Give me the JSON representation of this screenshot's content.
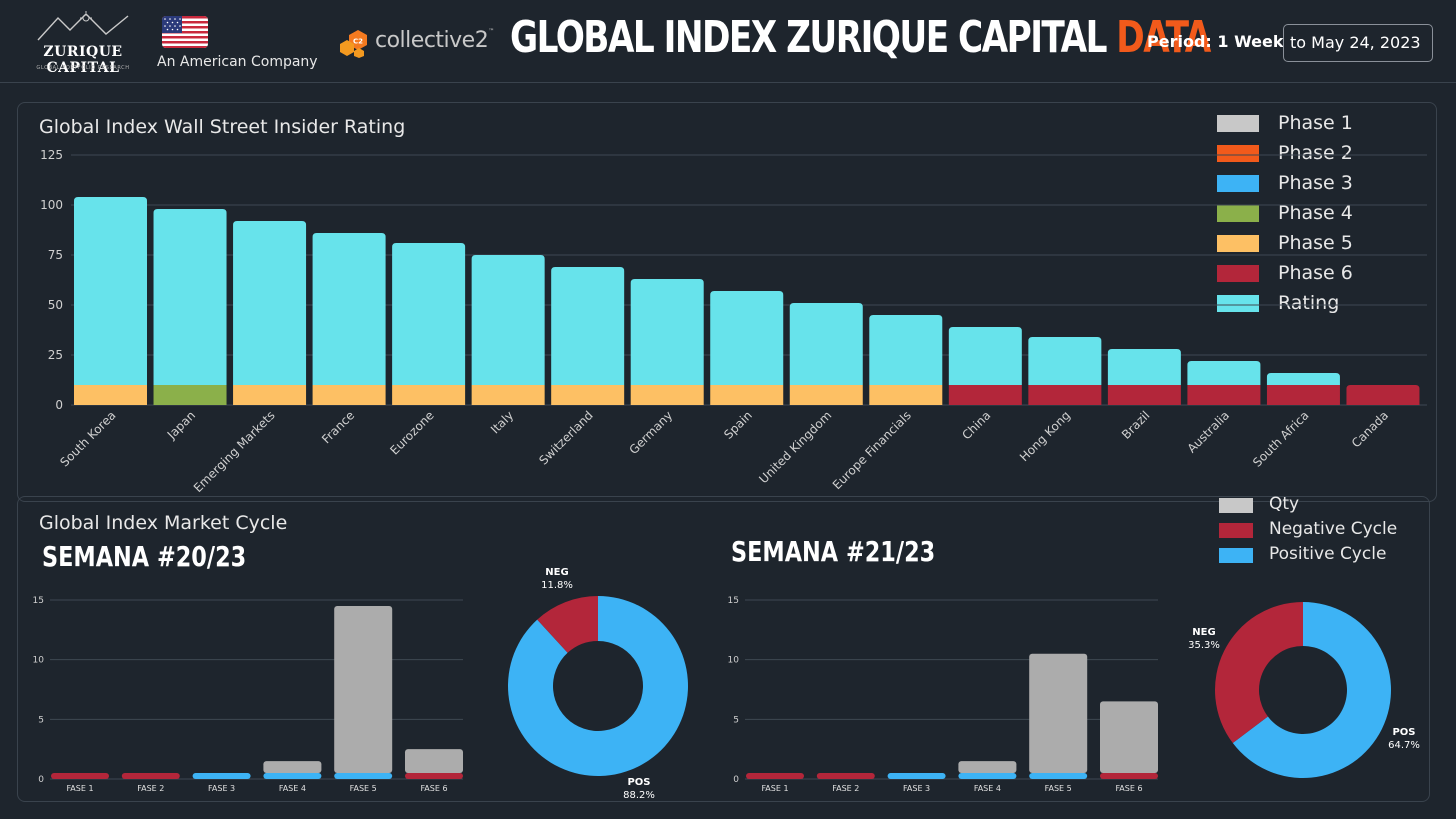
{
  "header": {
    "logo_name": "ZURIQUE CAPITAL",
    "logo_sub": "GLOBAL PORTFOLIO RESEARCH",
    "company_tagline": "An American Company",
    "partner_name": "collective2",
    "partner_badge": "C2",
    "partner_tm": "™",
    "title_main": "GLOBAL INDEX ZURIQUE CAPITAL ",
    "title_accent": "DATA",
    "period_label": "Period: 1 Week",
    "date_value": "to May 24, 2023"
  },
  "colors": {
    "background": "#1e252d",
    "phase1": "#c8c8c8",
    "phase2": "#f25a1b",
    "phase3": "#3db3f5",
    "phase4": "#8bb04a",
    "phase5": "#fdc064",
    "phase6": "#b3263a",
    "rating": "#67e3eb",
    "qty": "#acacac",
    "accent": "#f25a1b"
  },
  "chart_data": [
    {
      "type": "bar",
      "title": "Global Index Wall Street Insider Rating",
      "categories": [
        "South Korea",
        "Japan",
        "Emerging Markets",
        "France",
        "Eurozone",
        "Italy",
        "Switzerland",
        "Germany",
        "Spain",
        "United Kingdom",
        "Europe Financials",
        "China",
        "Hong Kong",
        "Brazil",
        "Australia",
        "South Africa",
        "Canada"
      ],
      "series": [
        {
          "name": "Phase 1",
          "values": [
            0,
            0,
            0,
            0,
            0,
            0,
            0,
            0,
            0,
            0,
            0,
            0,
            0,
            0,
            0,
            0,
            0
          ]
        },
        {
          "name": "Phase 2",
          "values": [
            0,
            0,
            0,
            0,
            0,
            0,
            0,
            0,
            0,
            0,
            0,
            0,
            0,
            0,
            0,
            0,
            0
          ]
        },
        {
          "name": "Phase 3",
          "values": [
            0,
            0,
            0,
            0,
            0,
            0,
            0,
            0,
            0,
            0,
            0,
            0,
            0,
            0,
            0,
            0,
            0
          ]
        },
        {
          "name": "Phase 4",
          "values": [
            0,
            10,
            0,
            0,
            0,
            0,
            0,
            0,
            0,
            0,
            0,
            0,
            0,
            0,
            0,
            0,
            0
          ]
        },
        {
          "name": "Phase 5",
          "values": [
            10,
            0,
            10,
            10,
            10,
            10,
            10,
            10,
            10,
            10,
            10,
            0,
            0,
            0,
            0,
            0,
            0
          ]
        },
        {
          "name": "Phase 6",
          "values": [
            0,
            0,
            0,
            0,
            0,
            0,
            0,
            0,
            0,
            0,
            0,
            10,
            10,
            10,
            10,
            10,
            10
          ]
        },
        {
          "name": "Rating",
          "values": [
            94,
            88,
            82,
            76,
            71,
            65,
            59,
            53,
            47,
            41,
            35,
            29,
            24,
            18,
            12,
            6,
            0
          ]
        }
      ],
      "stacked": true,
      "ylim": [
        0,
        125
      ],
      "yticks": [
        0,
        25,
        50,
        75,
        100,
        125
      ],
      "legend_position": "top-right"
    },
    {
      "type": "bar",
      "title": "SEMANA #20/23",
      "categories": [
        "FASE 1",
        "FASE 2",
        "FASE 3",
        "FASE 4",
        "FASE 5",
        "FASE 6"
      ],
      "series": [
        {
          "name": "Negative Cycle",
          "values": [
            0.5,
            0.5,
            0,
            0,
            0,
            0.5
          ]
        },
        {
          "name": "Positive Cycle",
          "values": [
            0,
            0,
            0.5,
            0.5,
            0.5,
            0
          ]
        },
        {
          "name": "Qty",
          "values": [
            0,
            0,
            0,
            1,
            14,
            2
          ]
        }
      ],
      "stacked": true,
      "ylim": [
        0,
        15
      ],
      "yticks": [
        0,
        5,
        10,
        15
      ]
    },
    {
      "type": "pie",
      "title": "SEMANA #20/23",
      "labels": [
        "POS",
        "NEG"
      ],
      "values": [
        88.2,
        11.8
      ],
      "display": [
        "88.2%",
        "11.8%"
      ]
    },
    {
      "type": "bar",
      "title": "SEMANA #21/23",
      "categories": [
        "FASE 1",
        "FASE 2",
        "FASE 3",
        "FASE 4",
        "FASE 5",
        "FASE 6"
      ],
      "series": [
        {
          "name": "Negative Cycle",
          "values": [
            0.5,
            0.5,
            0,
            0,
            0,
            0.5
          ]
        },
        {
          "name": "Positive Cycle",
          "values": [
            0,
            0,
            0.5,
            0.5,
            0.5,
            0
          ]
        },
        {
          "name": "Qty",
          "values": [
            0,
            0,
            0,
            1,
            10,
            6
          ]
        }
      ],
      "stacked": true,
      "ylim": [
        0,
        15
      ],
      "yticks": [
        0,
        5,
        10,
        15
      ]
    },
    {
      "type": "pie",
      "title": "SEMANA #21/23",
      "labels": [
        "POS",
        "NEG"
      ],
      "values": [
        64.7,
        35.3
      ],
      "display": [
        "64.7%",
        "35.3%"
      ]
    }
  ],
  "rating_panel": {
    "title": "Global Index Wall Street Insider Rating",
    "legend": [
      "Phase 1",
      "Phase 2",
      "Phase 3",
      "Phase 4",
      "Phase 5",
      "Phase 6",
      "Rating"
    ]
  },
  "cycle_panel": {
    "title": "Global Index Market Cycle",
    "week1": "SEMANA #20/23",
    "week2": "SEMANA #21/23",
    "legend": [
      "Qty",
      "Negative Cycle",
      "Positive Cycle"
    ]
  }
}
